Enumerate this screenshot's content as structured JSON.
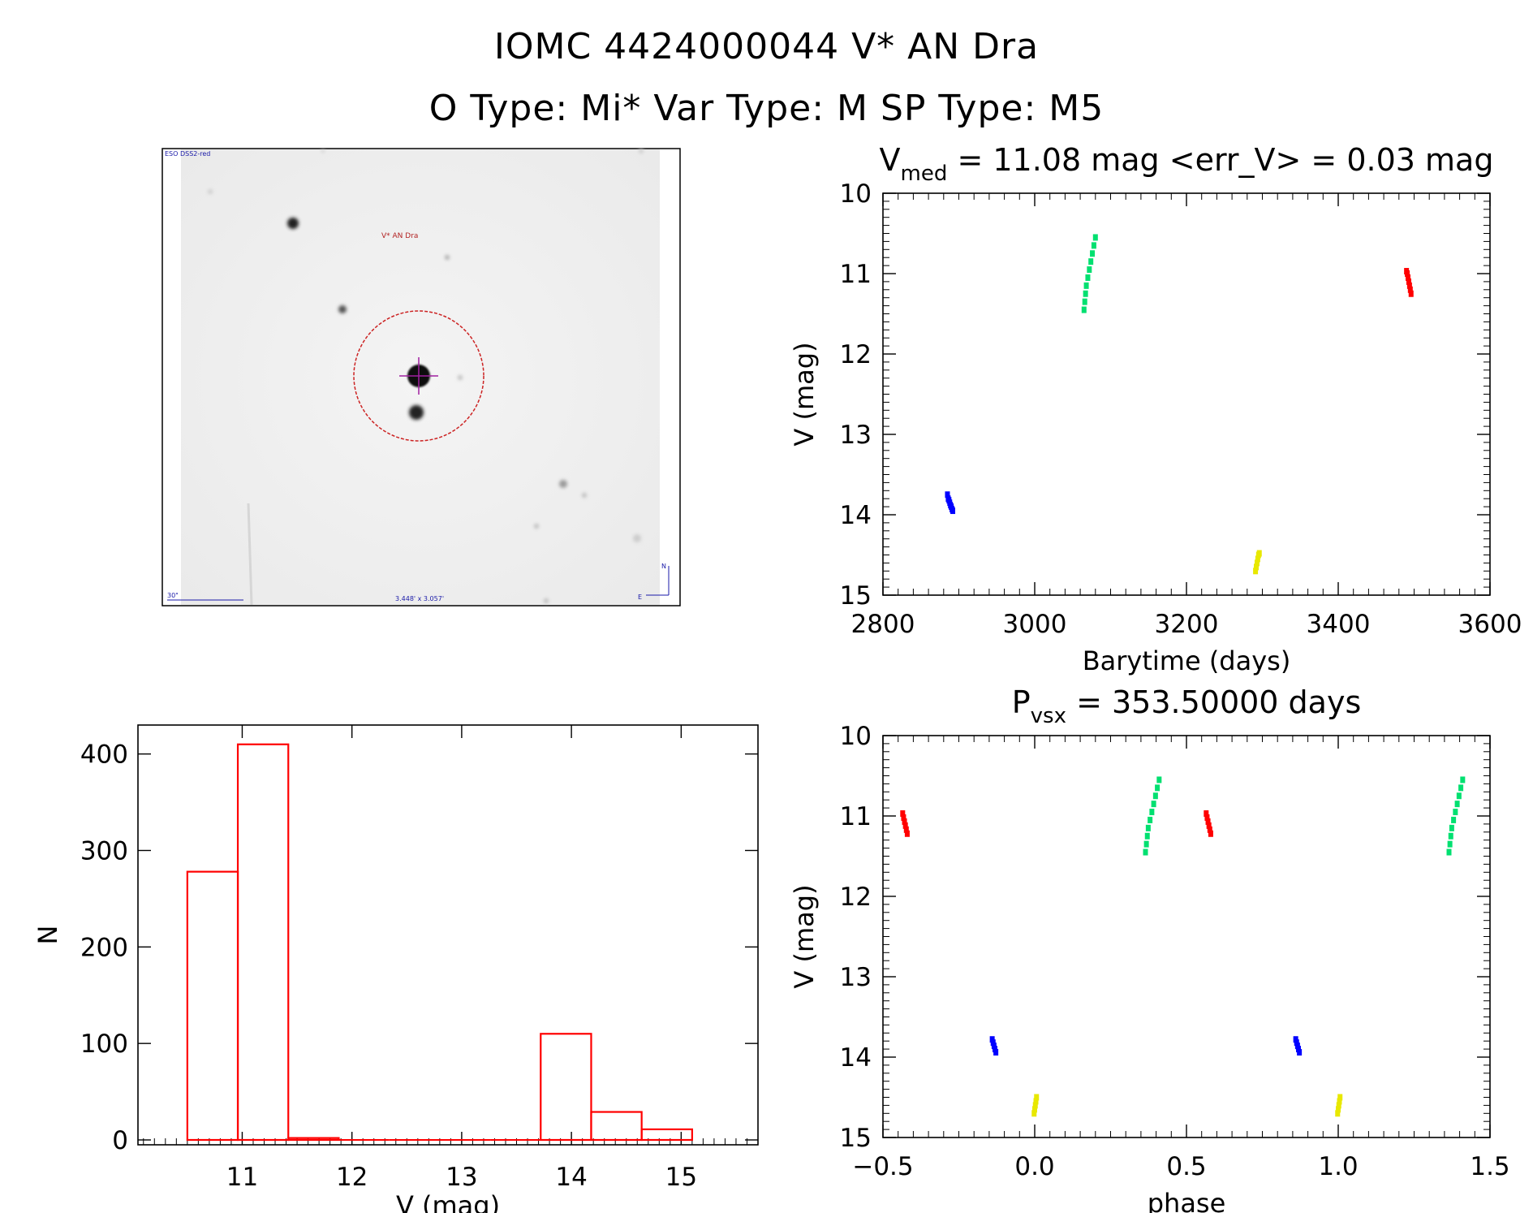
{
  "header": {
    "line1": "IOMC 4424000044    V* AN Dra",
    "line2": "O Type: Mi*  Var Type: M  SP Type: M5"
  },
  "image_panel": {
    "survey_label": "ESO DSS2-red",
    "target_label": "V* AN Dra",
    "scale_label": "30\"",
    "size_label": "3.448' x 3.057'",
    "compass_n": "N",
    "compass_e": "E",
    "colors": {
      "circle": "#cc2222",
      "labels": "#1a1aa8",
      "target_label": "#b22222",
      "crosshair": "#a020a0"
    }
  },
  "chart_data": [
    {
      "id": "lightcurve",
      "type": "scatter",
      "title_main": "V",
      "title_sub": "med",
      "title_rest": " = 11.08 mag <err_V> = 0.03 mag",
      "xlabel": "Barytime (days)",
      "ylabel": "V (mag)",
      "xlim": [
        2800,
        3600
      ],
      "ylim": [
        15,
        10
      ],
      "xticks": [
        2800,
        3000,
        3200,
        3400,
        3600
      ],
      "yticks": [
        10,
        11,
        12,
        13,
        14,
        15
      ],
      "series": [
        {
          "color": "#0000ff",
          "points": [
            [
              2885,
              13.75
            ],
            [
              2886,
              13.8
            ],
            [
              2887,
              13.82
            ],
            [
              2888,
              13.85
            ],
            [
              2889,
              13.88
            ],
            [
              2890,
              13.9
            ],
            [
              2891,
              13.93
            ],
            [
              2892,
              13.95
            ]
          ]
        },
        {
          "color": "#00e070",
          "points": [
            [
              3065,
              11.45
            ],
            [
              3066,
              11.35
            ],
            [
              3067,
              11.25
            ],
            [
              3068,
              11.15
            ],
            [
              3070,
              11.05
            ],
            [
              3072,
              10.95
            ],
            [
              3074,
              10.85
            ],
            [
              3076,
              10.75
            ],
            [
              3078,
              10.65
            ],
            [
              3080,
              10.55
            ]
          ]
        },
        {
          "color": "#e8e800",
          "points": [
            [
              3291,
              14.7
            ],
            [
              3292,
              14.65
            ],
            [
              3293,
              14.6
            ],
            [
              3294,
              14.55
            ],
            [
              3295,
              14.5
            ],
            [
              3296,
              14.48
            ]
          ]
        },
        {
          "color": "#ff0000",
          "points": [
            [
              3490,
              10.97
            ],
            [
              3491,
              11.0
            ],
            [
              3492,
              11.05
            ],
            [
              3493,
              11.1
            ],
            [
              3494,
              11.15
            ],
            [
              3495,
              11.2
            ],
            [
              3496,
              11.25
            ]
          ]
        }
      ]
    },
    {
      "id": "phased",
      "type": "scatter",
      "title_main": "P",
      "title_sub": "vsx",
      "title_rest": " = 353.50000 days",
      "xlabel": "phase",
      "ylabel": "V (mag)",
      "xlim": [
        -0.5,
        1.5
      ],
      "ylim": [
        15,
        10
      ],
      "xticks": [
        -0.5,
        0.0,
        0.5,
        1.0,
        1.5
      ],
      "xtick_labels": [
        "−0.5",
        "0.0",
        "0.5",
        "1.0",
        "1.5"
      ],
      "yticks": [
        10,
        11,
        12,
        13,
        14,
        15
      ],
      "series": [
        {
          "color": "#ff0000",
          "points": [
            [
              -0.435,
              10.97
            ],
            [
              -0.432,
              11.02
            ],
            [
              -0.429,
              11.07
            ],
            [
              -0.426,
              11.12
            ],
            [
              -0.423,
              11.17
            ],
            [
              -0.42,
              11.22
            ],
            [
              0.565,
              10.97
            ],
            [
              0.568,
              11.02
            ],
            [
              0.571,
              11.07
            ],
            [
              0.574,
              11.12
            ],
            [
              0.577,
              11.17
            ],
            [
              0.58,
              11.22
            ]
          ]
        },
        {
          "color": "#0000ff",
          "points": [
            [
              -0.14,
              13.78
            ],
            [
              -0.137,
              13.82
            ],
            [
              -0.134,
              13.86
            ],
            [
              -0.131,
              13.9
            ],
            [
              -0.128,
              13.94
            ],
            [
              0.86,
              13.78
            ],
            [
              0.863,
              13.82
            ],
            [
              0.866,
              13.86
            ],
            [
              0.869,
              13.9
            ],
            [
              0.872,
              13.94
            ]
          ]
        },
        {
          "color": "#e8e800",
          "points": [
            [
              -0.002,
              14.7
            ],
            [
              0.0,
              14.65
            ],
            [
              0.002,
              14.6
            ],
            [
              0.004,
              14.55
            ],
            [
              0.006,
              14.5
            ],
            [
              0.998,
              14.7
            ],
            [
              1.0,
              14.65
            ],
            [
              1.002,
              14.6
            ],
            [
              1.004,
              14.55
            ],
            [
              1.006,
              14.5
            ]
          ]
        },
        {
          "color": "#00e070",
          "points": [
            [
              0.365,
              11.45
            ],
            [
              0.368,
              11.35
            ],
            [
              0.371,
              11.25
            ],
            [
              0.374,
              11.15
            ],
            [
              0.38,
              11.05
            ],
            [
              0.386,
              10.95
            ],
            [
              0.392,
              10.85
            ],
            [
              0.398,
              10.75
            ],
            [
              0.404,
              10.65
            ],
            [
              0.41,
              10.55
            ],
            [
              1.365,
              11.45
            ],
            [
              1.368,
              11.35
            ],
            [
              1.371,
              11.25
            ],
            [
              1.374,
              11.15
            ],
            [
              1.38,
              11.05
            ],
            [
              1.386,
              10.95
            ],
            [
              1.392,
              10.85
            ],
            [
              1.398,
              10.75
            ],
            [
              1.404,
              10.65
            ],
            [
              1.41,
              10.55
            ]
          ]
        }
      ]
    },
    {
      "id": "histogram",
      "type": "bar",
      "xlabel": "V (mag)",
      "ylabel": "N",
      "xlim": [
        10.05,
        15.7
      ],
      "ylim": [
        0,
        430
      ],
      "xticks": [
        11,
        12,
        13,
        14,
        15
      ],
      "yticks": [
        0,
        100,
        200,
        300,
        400
      ],
      "color": "#ff0000",
      "bins": [
        {
          "x0": 10.5,
          "x1": 10.96,
          "value": 278
        },
        {
          "x0": 10.96,
          "x1": 11.42,
          "value": 410
        },
        {
          "x0": 11.42,
          "x1": 11.88,
          "value": 2
        },
        {
          "x0": 11.88,
          "x1": 12.34,
          "value": 0
        },
        {
          "x0": 12.34,
          "x1": 12.8,
          "value": 0
        },
        {
          "x0": 12.8,
          "x1": 13.26,
          "value": 0
        },
        {
          "x0": 13.26,
          "x1": 13.72,
          "value": 0
        },
        {
          "x0": 13.72,
          "x1": 14.18,
          "value": 110
        },
        {
          "x0": 14.18,
          "x1": 14.64,
          "value": 29
        },
        {
          "x0": 14.64,
          "x1": 15.1,
          "value": 11
        }
      ]
    }
  ]
}
